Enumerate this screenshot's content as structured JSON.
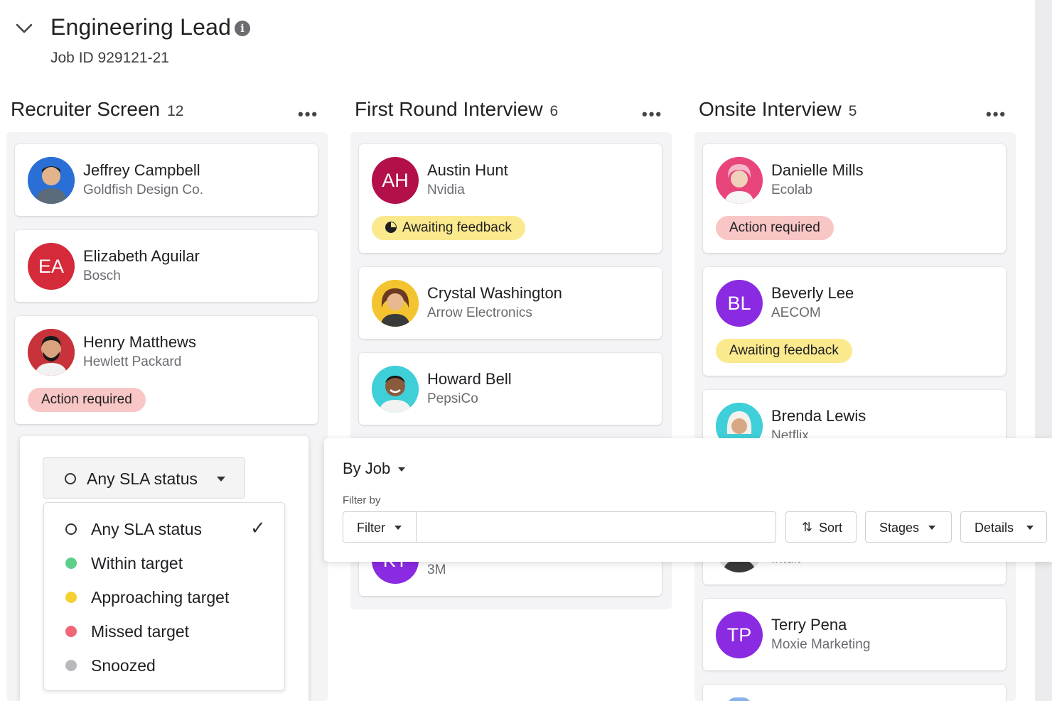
{
  "job": {
    "title": "Engineering Lead",
    "job_id": "Job ID 929121-21"
  },
  "columns": [
    {
      "title": "Recruiter Screen",
      "count": "12",
      "cards": [
        {
          "name": "Jeffrey Campbell",
          "company": "Goldfish Design Co.",
          "initials": "",
          "avatar_color": "#2a6fd6",
          "badge": ""
        },
        {
          "name": "Elizabeth Aguilar",
          "company": "Bosch",
          "initials": "EA",
          "avatar_color": "#d42a3a",
          "badge": ""
        },
        {
          "name": "Henry Matthews",
          "company": "Hewlett Packard",
          "initials": "",
          "avatar_color": "#c8323a",
          "badge": "Action required"
        }
      ]
    },
    {
      "title": "First Round Interview",
      "count": "6",
      "cards": [
        {
          "name": "Austin Hunt",
          "company": "Nvidia",
          "initials": "AH",
          "avatar_color": "#b3104b",
          "badge": "Awaiting feedback"
        },
        {
          "name": "Crystal Washington",
          "company": "Arrow Electronics",
          "initials": "",
          "avatar_color": "#f4c430",
          "badge": ""
        },
        {
          "name": "Howard Bell",
          "company": "PepsiCo",
          "initials": "",
          "avatar_color": "#3fcfd8",
          "badge": ""
        },
        {
          "name": "",
          "company": "3M",
          "initials": "KT",
          "avatar_color": "#8a2be2",
          "badge": ""
        }
      ]
    },
    {
      "title": "Onsite Interview",
      "count": "5",
      "cards": [
        {
          "name": "Danielle Mills",
          "company": "Ecolab",
          "initials": "",
          "avatar_color": "#e8467a",
          "badge": "Action required"
        },
        {
          "name": "Beverly Lee",
          "company": "AECOM",
          "initials": "BL",
          "avatar_color": "#8a2be2",
          "badge": "Awaiting feedback"
        },
        {
          "name": "Brenda Lewis",
          "company": "Netflix",
          "initials": "",
          "avatar_color": "#3fcfd8",
          "badge": ""
        },
        {
          "name": "",
          "company": "Intuit",
          "initials": "",
          "avatar_color": "#b89a80",
          "badge": ""
        },
        {
          "name": "Terry Pena",
          "company": "Moxie Marketing",
          "initials": "TP",
          "avatar_color": "#8a2be2",
          "badge": ""
        }
      ]
    }
  ],
  "sla": {
    "selected": "Any SLA status",
    "options": [
      {
        "label": "Any SLA status",
        "color": "",
        "checked": true
      },
      {
        "label": "Within target",
        "color": "#5ccf8a",
        "checked": false
      },
      {
        "label": "Approaching target",
        "color": "#f5d130",
        "checked": false
      },
      {
        "label": "Missed target",
        "color": "#f0677a",
        "checked": false
      },
      {
        "label": "Snoozed",
        "color": "#b9b9bd",
        "checked": false
      }
    ]
  },
  "filter_panel": {
    "group_by": "By Job",
    "filter_by_label": "Filter by",
    "filter_button": "Filter",
    "search_value": "",
    "sort_button": "Sort",
    "stages_button": "Stages",
    "details_button": "Details"
  }
}
